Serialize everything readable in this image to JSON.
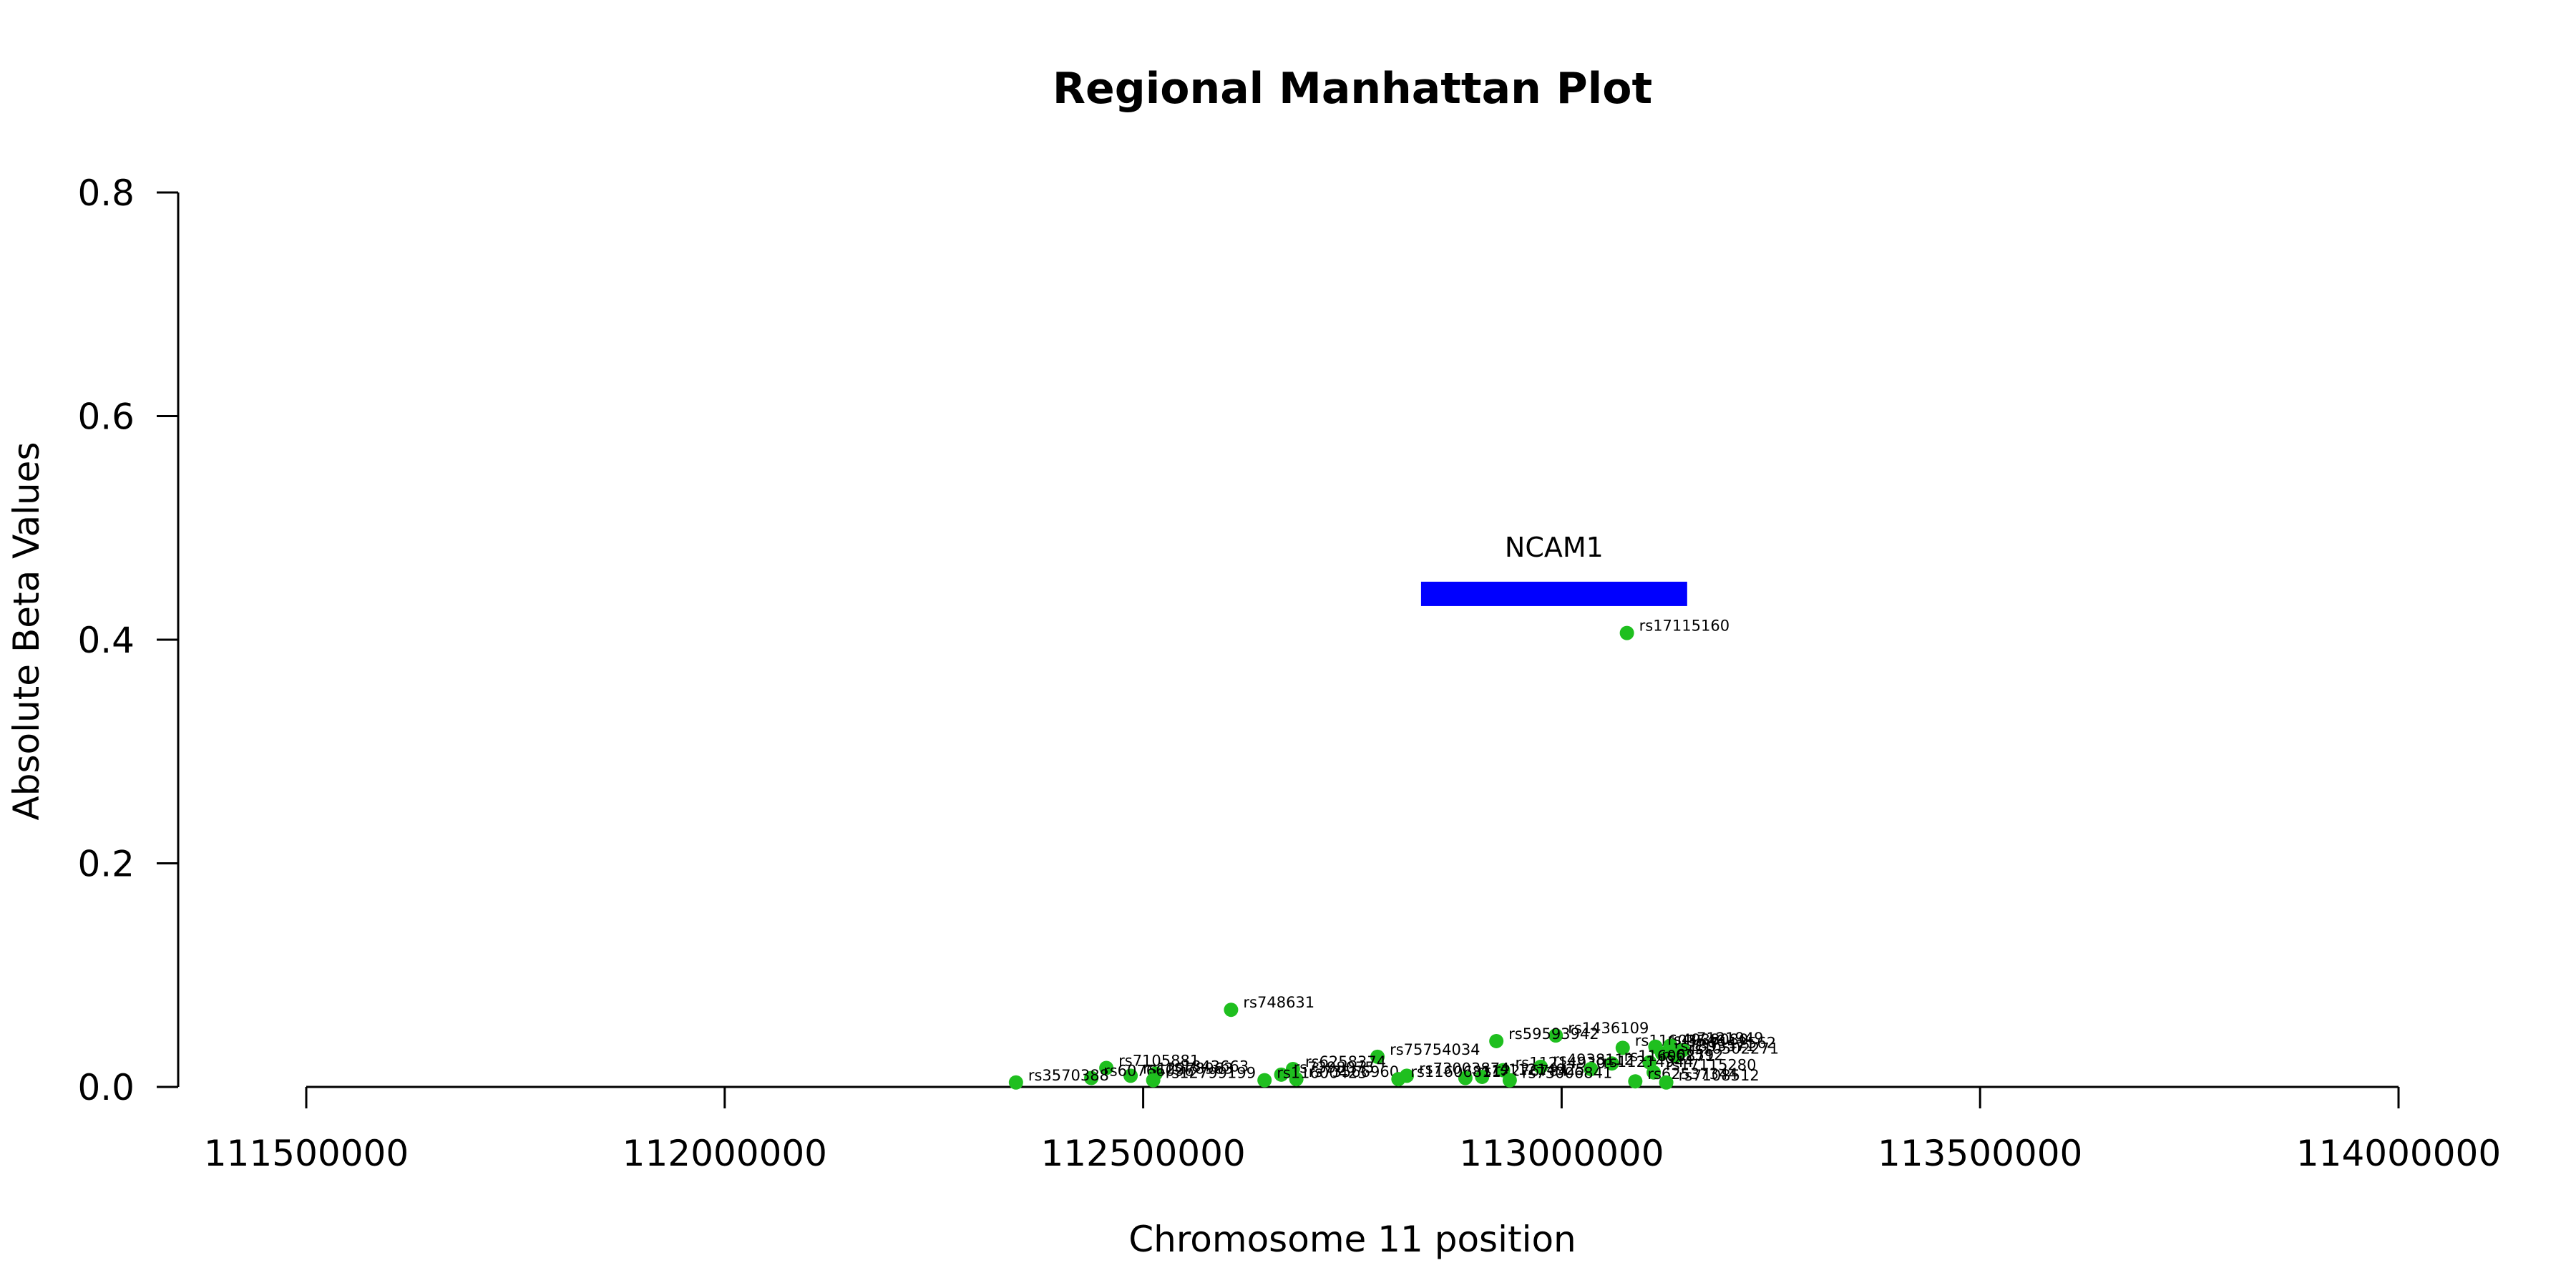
{
  "chart_data": {
    "type": "scatter",
    "title": "Regional Manhattan Plot",
    "xlabel": "Chromosome 11 position",
    "ylabel": "Absolute Beta Values",
    "xlim": [
      111350000,
      114150000
    ],
    "ylim": [
      0,
      0.8
    ],
    "xticks": [
      111500000,
      112000000,
      112500000,
      113000000,
      113500000,
      114000000
    ],
    "xtick_labels": [
      "111500000",
      "112000000",
      "112500000",
      "113000000",
      "113500000",
      "114000000"
    ],
    "yticks": [
      0,
      0.2,
      0.4,
      0.6,
      0.8
    ],
    "ytick_labels": [
      "0.0",
      "0.2",
      "0.4",
      "0.6",
      "0.8"
    ],
    "grid": false,
    "point_color": "#1fbf1f",
    "gene": {
      "name": "NCAM1",
      "start": 112832000,
      "end": 113150000,
      "y": 0.441,
      "color": "#0000ff"
    },
    "points": [
      {
        "id": "rs17115160",
        "x": 113078000,
        "y": 0.406
      },
      {
        "id": "rs748631",
        "x": 112605000,
        "y": 0.069
      },
      {
        "id": "rs1436109",
        "x": 112993000,
        "y": 0.046
      },
      {
        "id": "rs59593942",
        "x": 112922000,
        "y": 0.041
      },
      {
        "id": "rs11603546",
        "x": 113073000,
        "y": 0.035
      },
      {
        "id": "rs7121949",
        "x": 113130000,
        "y": 0.037
      },
      {
        "id": "rs4938080",
        "x": 113112000,
        "y": 0.036
      },
      {
        "id": "rs7112562",
        "x": 113145000,
        "y": 0.033
      },
      {
        "id": "rs1893571",
        "x": 113120000,
        "y": 0.03
      },
      {
        "id": "rs10502271",
        "x": 113137000,
        "y": 0.028
      },
      {
        "id": "rs75754034",
        "x": 112780000,
        "y": 0.027
      },
      {
        "id": "rs62592",
        "x": 113105000,
        "y": 0.022
      },
      {
        "id": "rs11600871",
        "x": 113060000,
        "y": 0.021
      },
      {
        "id": "rs7105881",
        "x": 112456000,
        "y": 0.017
      },
      {
        "id": "rs6258374",
        "x": 112679000,
        "y": 0.016
      },
      {
        "id": "rs11214930",
        "x": 112930000,
        "y": 0.015
      },
      {
        "id": "rs4938112",
        "x": 112975000,
        "y": 0.018
      },
      {
        "id": "rs11214944",
        "x": 113035000,
        "y": 0.016
      },
      {
        "id": "rs17115280",
        "x": 113110000,
        "y": 0.013
      },
      {
        "id": "rs1843663",
        "x": 112515000,
        "y": 0.012
      },
      {
        "id": "rs12278963",
        "x": 112485000,
        "y": 0.01
      },
      {
        "id": "rs7398075",
        "x": 112665000,
        "y": 0.011
      },
      {
        "id": "rs73003874",
        "x": 112815000,
        "y": 0.01
      },
      {
        "id": "rs11214925",
        "x": 112905000,
        "y": 0.009
      },
      {
        "id": "rs60766096",
        "x": 112438000,
        "y": 0.008
      },
      {
        "id": "rs12276784",
        "x": 112885000,
        "y": 0.008
      },
      {
        "id": "rs73566960",
        "x": 112683000,
        "y": 0.007
      },
      {
        "id": "rs11606811",
        "x": 112805000,
        "y": 0.007
      },
      {
        "id": "rs73006841",
        "x": 112938000,
        "y": 0.006
      },
      {
        "id": "rs62537344",
        "x": 113088000,
        "y": 0.005
      },
      {
        "id": "rs7108512",
        "x": 113125000,
        "y": 0.004
      },
      {
        "id": "rs12799199",
        "x": 112512000,
        "y": 0.006
      },
      {
        "id": "rs3570388",
        "x": 112348000,
        "y": 0.004
      },
      {
        "id": "rs11600423",
        "x": 112645000,
        "y": 0.006
      }
    ]
  }
}
